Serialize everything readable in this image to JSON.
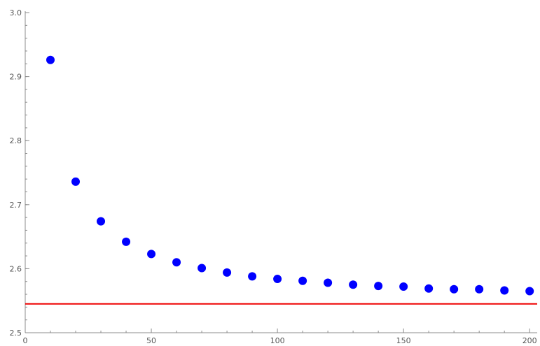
{
  "chart_data": {
    "type": "scatter",
    "title": "",
    "xlabel": "",
    "ylabel": "",
    "xlim": [
      0,
      203
    ],
    "ylim": [
      2.5,
      3.0
    ],
    "x_ticks": [
      0,
      50,
      100,
      150,
      200
    ],
    "x_tick_labels": [
      "0",
      "50",
      "100",
      "150",
      "200"
    ],
    "y_ticks": [
      2.5,
      2.6,
      2.7,
      2.8,
      2.9,
      3.0
    ],
    "y_tick_labels": [
      "2.5",
      "2.6",
      "2.7",
      "2.8",
      "2.9",
      "3.0"
    ],
    "grid": false,
    "point_color": "#0000ff",
    "reference_line": {
      "y": 2.545,
      "color": "#ee0000"
    },
    "points": [
      {
        "x": 10,
        "y": 2.926
      },
      {
        "x": 20,
        "y": 2.736
      },
      {
        "x": 30,
        "y": 2.674
      },
      {
        "x": 40,
        "y": 2.642
      },
      {
        "x": 50,
        "y": 2.623
      },
      {
        "x": 60,
        "y": 2.61
      },
      {
        "x": 70,
        "y": 2.601
      },
      {
        "x": 80,
        "y": 2.594
      },
      {
        "x": 90,
        "y": 2.588
      },
      {
        "x": 100,
        "y": 2.584
      },
      {
        "x": 110,
        "y": 2.581
      },
      {
        "x": 120,
        "y": 2.578
      },
      {
        "x": 130,
        "y": 2.575
      },
      {
        "x": 140,
        "y": 2.573
      },
      {
        "x": 150,
        "y": 2.572
      },
      {
        "x": 160,
        "y": 2.569
      },
      {
        "x": 170,
        "y": 2.568
      },
      {
        "x": 180,
        "y": 2.568
      },
      {
        "x": 190,
        "y": 2.566
      },
      {
        "x": 200,
        "y": 2.565
      }
    ]
  }
}
